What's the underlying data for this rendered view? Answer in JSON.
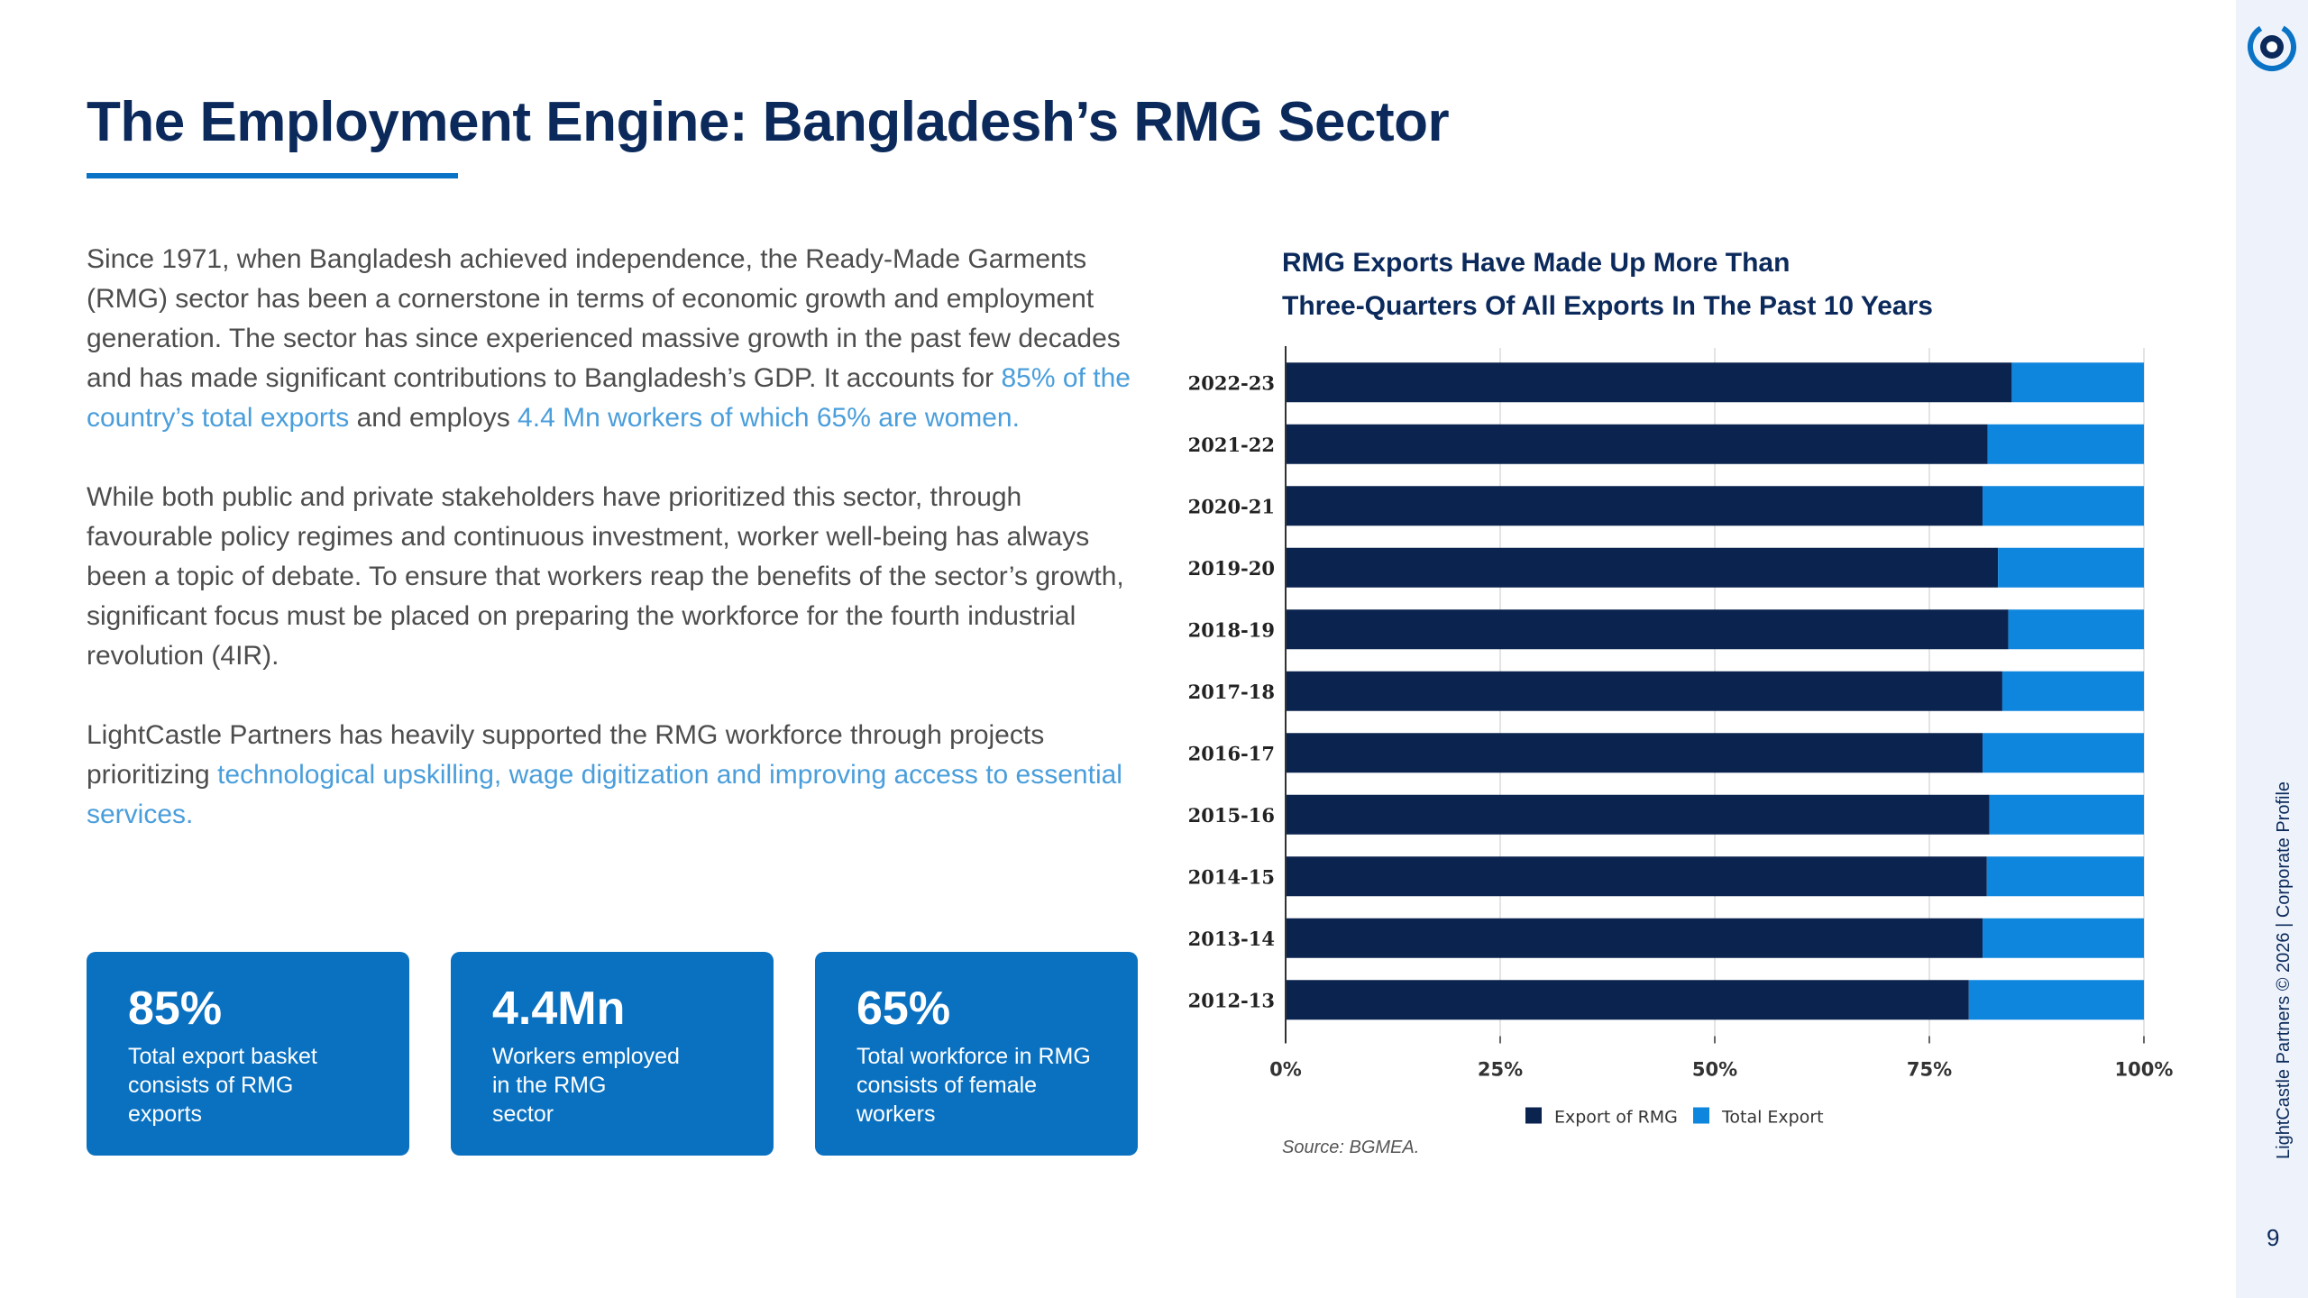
{
  "title": "The Employment Engine: Bangladesh’s RMG Sector",
  "paragraphs": {
    "p1": {
      "part1": "Since 1971, when Bangladesh achieved independence, the Ready-Made Garments (RMG)  sector has been a cornerstone in terms of economic growth and employment generation. The sector has since experienced massive growth in the past few decades and has made significant contributions to Bangladesh’s GDP. It accounts for ",
      "hl1": "85% of the country’s total exports",
      "part2": " and employs ",
      "hl2": "4.4 Mn workers of which 65% are women."
    },
    "p2": "While both public and private stakeholders have prioritized this sector, through favourable policy regimes and continuous investment, worker well-being has always been a topic of debate. To ensure that workers reap the benefits of the sector’s growth, significant focus must be placed on preparing the workforce for the fourth industrial revolution (4IR).",
    "p3": {
      "part1": "LightCastle Partners has heavily supported the RMG workforce through projects prioritizing ",
      "hl1": "technological upskilling, wage digitization and improving access to essential services."
    }
  },
  "cards": [
    {
      "value": "85%",
      "caption": "Total export basket\nconsists of RMG\nexports"
    },
    {
      "value": "4.4Mn",
      "caption": "Workers employed\nin the RMG\nsector"
    },
    {
      "value": "65%",
      "caption": "Total workforce in RMG\nconsists of female\nworkers"
    }
  ],
  "chart_title": {
    "line1": "RMG Exports Have Made Up More Than",
    "line2": "Three-Quarters Of All Exports In The Past 10 Years"
  },
  "source": "Source: BGMEA.",
  "footer": {
    "vertical_text": "LightCastle Partners © 2026 | Corporate Profile",
    "page_number": "9"
  },
  "colors": {
    "title": "#0b2a5b",
    "accent": "#0a73c6",
    "card": "#0a71c1",
    "highlight_text": "#4a9edb",
    "rmg_series": "#0b234f",
    "total_series": "#0f86dd"
  },
  "chart_data": {
    "type": "bar",
    "orientation": "horizontal",
    "stacked": true,
    "categories": [
      "2022-23",
      "2021-22",
      "2020-21",
      "2019-20",
      "2018-19",
      "2017-18",
      "2016-17",
      "2015-16",
      "2014-15",
      "2013-14",
      "2012-13"
    ],
    "series": [
      {
        "name": "Export of RMG",
        "values": [
          84.6,
          81.8,
          81.2,
          83.0,
          84.2,
          83.5,
          81.2,
          82.0,
          81.7,
          81.2,
          79.6
        ]
      },
      {
        "name": "Total Export",
        "values": [
          15.4,
          18.2,
          18.8,
          17.0,
          15.8,
          16.5,
          18.8,
          18.0,
          18.3,
          18.8,
          20.4
        ]
      }
    ],
    "xticks": [
      "0%",
      "25%",
      "50%",
      "75%",
      "100%"
    ],
    "xlim": [
      0,
      100
    ],
    "grid": true,
    "legend_position": "bottom"
  }
}
